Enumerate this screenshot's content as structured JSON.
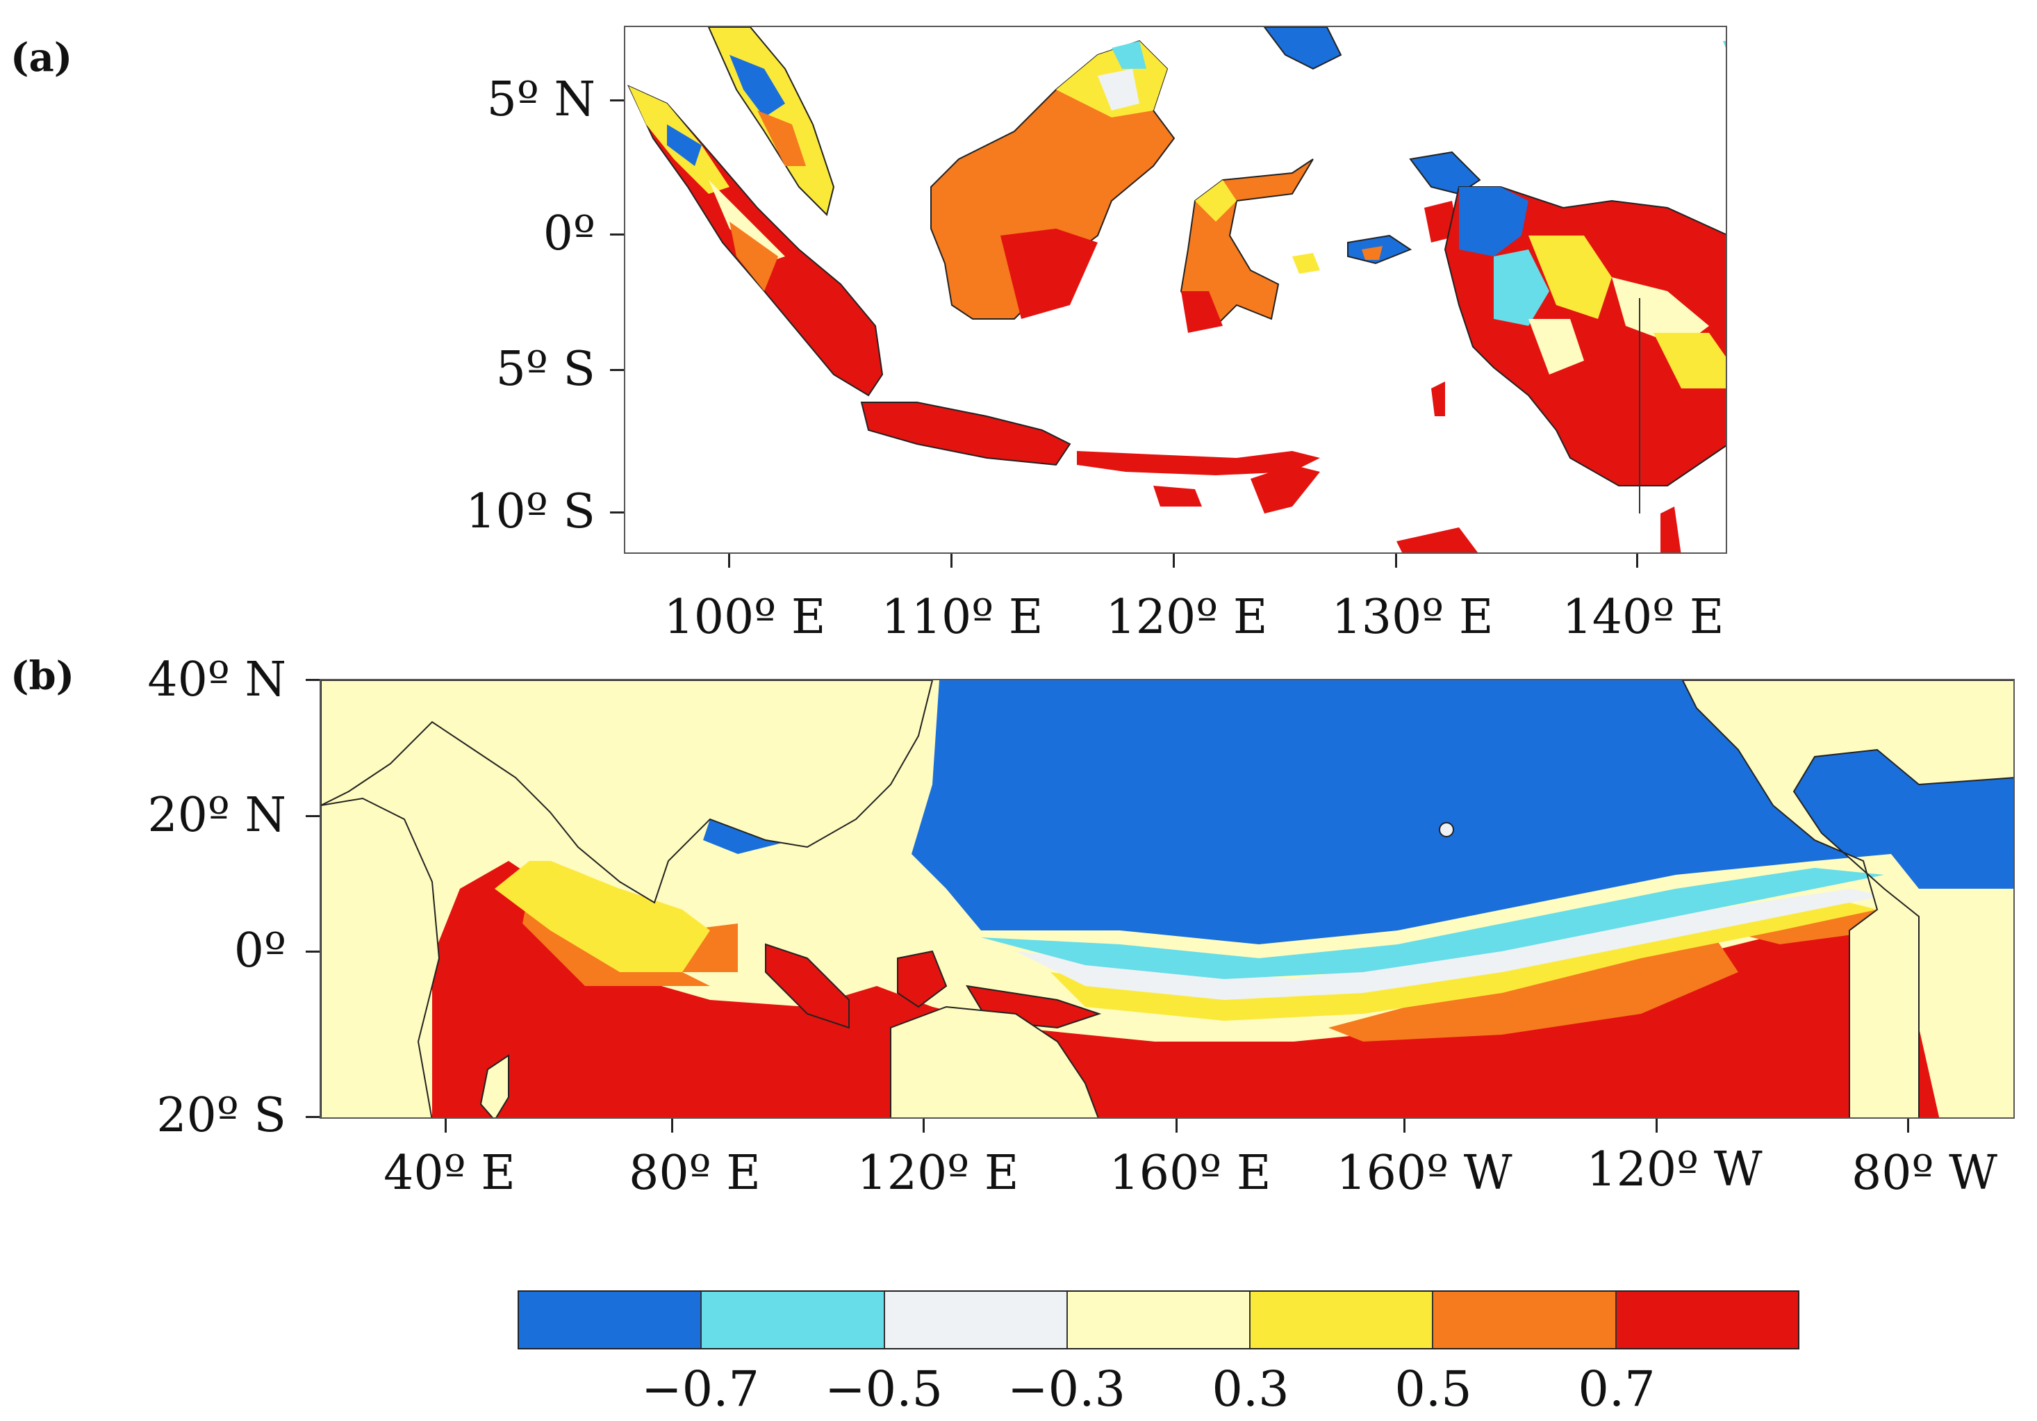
{
  "panels": [
    {
      "label": "(a)",
      "y_labels": [
        "5º N",
        "0º",
        "5º S",
        "10º S"
      ],
      "x_labels": [
        "100º E",
        "110º E",
        "120º E",
        "130º E",
        "140º E"
      ]
    },
    {
      "label": "(b)",
      "y_labels": [
        "40º N",
        "20º N",
        "0º",
        "20º S"
      ],
      "x_labels": [
        "40º E",
        "80º E",
        "120º E",
        "160º E",
        "160º W",
        "120º W",
        "80º W"
      ]
    }
  ],
  "colorbar": {
    "colors": [
      "#1a6fdb",
      "#66dde8",
      "#eef2f4",
      "#fefcc0",
      "#fbe93a",
      "#f67a1e",
      "#e3130f"
    ],
    "labels": [
      "−0.7",
      "−0.5",
      "−0.3",
      "0.3",
      "0.5",
      "0.7"
    ]
  },
  "icons": [
    "map-indonesia",
    "map-tropical-indo-pacific"
  ]
}
